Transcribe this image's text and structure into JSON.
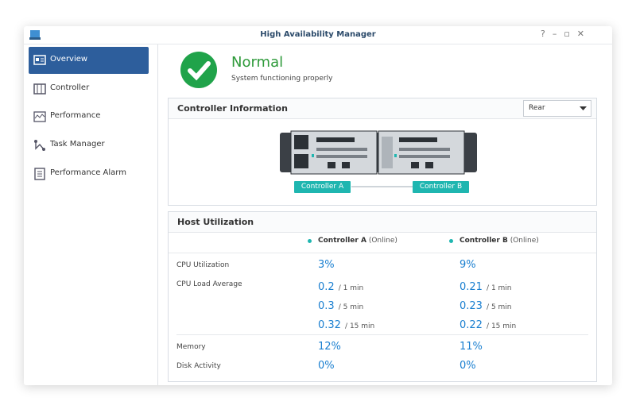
{
  "window": {
    "title": "High Availability Manager"
  },
  "sidebar": {
    "items": [
      "Overview",
      "Controller",
      "Performance",
      "Task Manager",
      "Performance Alarm"
    ],
    "selected": 0
  },
  "status": {
    "title": "Normal",
    "subtitle": "System functioning properly"
  },
  "controller_info": {
    "title": "Controller Information",
    "view": "Rear",
    "labels": [
      "Controller A",
      "Controller B"
    ]
  },
  "host_utilization": {
    "title": "Host Utilization",
    "columns": [
      {
        "name": "Controller A",
        "state": "(Online)"
      },
      {
        "name": "Controller B",
        "state": "(Online)"
      }
    ],
    "cpu_utilization": {
      "label": "CPU Utilization",
      "values": [
        "3%",
        "9%"
      ]
    },
    "cpu_load_average": {
      "label": "CPU Load Average",
      "values": [
        [
          {
            "value": "0.2",
            "unit": "/ 1 min"
          },
          {
            "value": "0.3",
            "unit": "/ 5 min"
          },
          {
            "value": "0.32",
            "unit": "/ 15 min"
          }
        ],
        [
          {
            "value": "0.21",
            "unit": "/ 1 min"
          },
          {
            "value": "0.23",
            "unit": "/ 5 min"
          },
          {
            "value": "0.22",
            "unit": "/ 15 min"
          }
        ]
      ]
    },
    "memory": {
      "label": "Memory",
      "values": [
        "12%",
        "11%"
      ]
    },
    "disk_activity": {
      "label": "Disk Activity",
      "values": [
        "0%",
        "0%"
      ]
    }
  }
}
